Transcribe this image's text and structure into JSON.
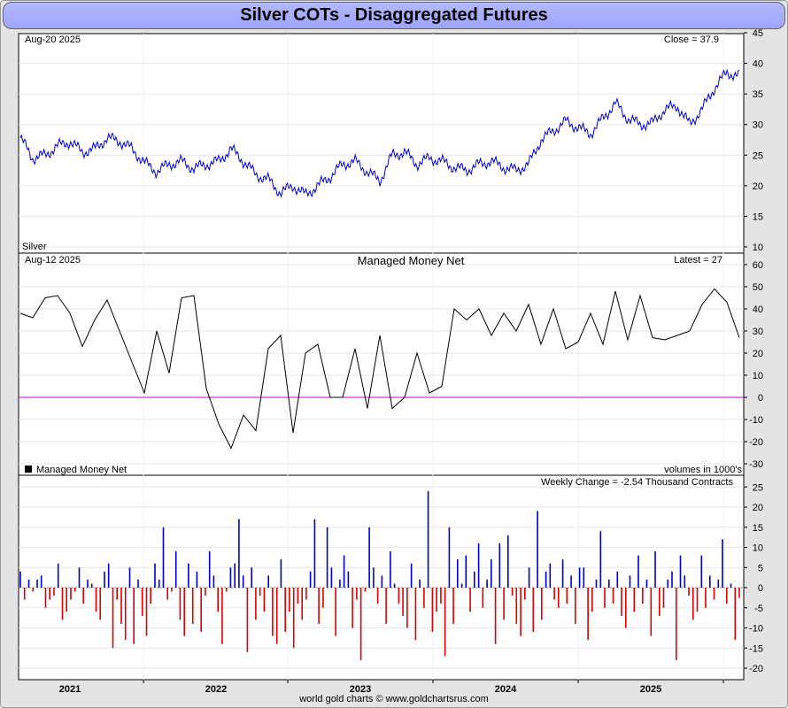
{
  "page": {
    "title": "Silver COTs - Disaggregated Futures",
    "footer": "world gold charts © www.goldchartsrus.com"
  },
  "chart_data": [
    {
      "panel": "price",
      "type": "line",
      "series": [
        {
          "name": "Silver",
          "color": "#0000cc"
        }
      ],
      "date_label": "Aug-20  2025",
      "latest_label": "Close = 37.9",
      "series_label": "Silver",
      "ylim": [
        10,
        45
      ],
      "yticks": [
        10,
        15,
        20,
        25,
        30,
        35,
        40,
        45
      ],
      "x": [
        "2020-10",
        "2020-11",
        "2020-12",
        "2021-01",
        "2021-02",
        "2021-03",
        "2021-04",
        "2021-05",
        "2021-06",
        "2021-07",
        "2021-08",
        "2021-09",
        "2021-10",
        "2021-11",
        "2021-12",
        "2022-01",
        "2022-02",
        "2022-03",
        "2022-04",
        "2022-05",
        "2022-06",
        "2022-07",
        "2022-08",
        "2022-09",
        "2022-10",
        "2022-11",
        "2022-12",
        "2023-01",
        "2023-02",
        "2023-03",
        "2023-04",
        "2023-05",
        "2023-06",
        "2023-07",
        "2023-08",
        "2023-09",
        "2023-10",
        "2023-11",
        "2023-12",
        "2024-01",
        "2024-02",
        "2024-03",
        "2024-04",
        "2024-05",
        "2024-06",
        "2024-07",
        "2024-08",
        "2024-09",
        "2024-10",
        "2024-11",
        "2024-12",
        "2025-01",
        "2025-02",
        "2025-03",
        "2025-04",
        "2025-05",
        "2025-06",
        "2025-07",
        "2025-08"
      ],
      "values": [
        27.8,
        24.5,
        25.0,
        26.5,
        27.2,
        25.5,
        26.0,
        27.8,
        27.3,
        26.0,
        23.8,
        22.3,
        23.5,
        24.0,
        22.8,
        23.5,
        24.0,
        26.0,
        24.0,
        21.8,
        21.0,
        18.8,
        20.0,
        18.5,
        20.0,
        21.5,
        23.5,
        24.0,
        22.3,
        20.8,
        25.0,
        25.5,
        23.5,
        24.5,
        24.0,
        23.0,
        22.5,
        23.5,
        24.0,
        23.0,
        22.5,
        23.5,
        27.5,
        29.0,
        30.5,
        29.5,
        28.5,
        31.0,
        33.5,
        31.0,
        30.0,
        30.2,
        32.5,
        33.0,
        30.0,
        32.5,
        36.0,
        38.5,
        37.9
      ]
    },
    {
      "panel": "managed_money_net",
      "type": "line",
      "title": "Managed Money Net",
      "series": [
        {
          "name": "Managed Money Net",
          "color": "#000000"
        }
      ],
      "date_label": "Aug-12  2025",
      "latest_label": "Latest = 27",
      "units_label": "volumes in 1000's",
      "ylim": [
        -30,
        60
      ],
      "yticks": [
        -30,
        -20,
        -10,
        0,
        10,
        20,
        30,
        40,
        50,
        60
      ],
      "zero_line_color": "#cc00cc",
      "x": [
        "2020-10",
        "2020-11",
        "2020-12",
        "2021-01",
        "2021-02",
        "2021-03",
        "2021-04",
        "2021-05",
        "2021-06",
        "2021-07",
        "2021-08",
        "2021-09",
        "2021-10",
        "2021-11",
        "2021-12",
        "2022-01",
        "2022-02",
        "2022-03",
        "2022-04",
        "2022-05",
        "2022-06",
        "2022-07",
        "2022-08",
        "2022-09",
        "2022-10",
        "2022-11",
        "2022-12",
        "2023-01",
        "2023-02",
        "2023-03",
        "2023-04",
        "2023-05",
        "2023-06",
        "2023-07",
        "2023-08",
        "2023-09",
        "2023-10",
        "2023-11",
        "2023-12",
        "2024-01",
        "2024-02",
        "2024-03",
        "2024-04",
        "2024-05",
        "2024-06",
        "2024-07",
        "2024-08",
        "2024-09",
        "2024-10",
        "2024-11",
        "2024-12",
        "2025-01",
        "2025-02",
        "2025-03",
        "2025-04",
        "2025-05",
        "2025-06",
        "2025-07",
        "2025-08"
      ],
      "values": [
        38,
        36,
        45,
        46,
        38,
        23,
        35,
        44,
        30,
        16,
        2,
        30,
        11,
        45,
        46,
        4,
        -12,
        -23,
        -8,
        -15,
        22,
        28,
        -16,
        20,
        24,
        0,
        0,
        22,
        -5,
        28,
        -5,
        0,
        20,
        2,
        5,
        40,
        35,
        40,
        28,
        38,
        30,
        42,
        24,
        40,
        22,
        25,
        38,
        24,
        48,
        26,
        46,
        27,
        26,
        28,
        30,
        42,
        49,
        43,
        27
      ]
    },
    {
      "panel": "weekly_change",
      "type": "bar",
      "series": [
        {
          "name": "Weekly Change",
          "positive_color": "#0000cc",
          "negative_color": "#dd0000"
        }
      ],
      "legend_label": "Managed Money Net",
      "latest_label": "Weekly Change = -2.54 Thousand Contracts",
      "ylim": [
        -22,
        27
      ],
      "yticks": [
        -20,
        -15,
        -10,
        -5,
        0,
        5,
        10,
        15,
        20,
        25
      ],
      "values": [
        4,
        -3,
        2,
        -1,
        2,
        3,
        -5,
        -3,
        -2,
        6,
        -8,
        -6,
        -3,
        -1,
        5,
        -4,
        2,
        1,
        -6,
        -8,
        4,
        6,
        -15,
        -3,
        -9,
        -13,
        5,
        -14,
        2,
        -7,
        -12,
        -4,
        6,
        2,
        15,
        -3,
        -1,
        9,
        -8,
        -12,
        6,
        -9,
        4,
        -11,
        -2,
        9,
        3,
        -6,
        -14,
        -1,
        5,
        6,
        17,
        3,
        -16,
        5,
        -8,
        -2,
        -6,
        3,
        -12,
        -14,
        7,
        -11,
        -6,
        -15,
        -4,
        -8,
        -3,
        4,
        17,
        -9,
        -5,
        15,
        5,
        -12,
        2,
        8,
        4,
        -10,
        -3,
        -18,
        -1,
        15,
        5,
        -4,
        3,
        -9,
        9,
        1,
        -4,
        -7,
        -10,
        6,
        -13,
        2,
        -5,
        24,
        -11,
        -6,
        -4,
        -17,
        15,
        -9,
        7,
        1,
        8,
        -6,
        4,
        11,
        -5,
        2,
        7,
        -14,
        11,
        -8,
        13,
        -2,
        -9,
        -12,
        -3,
        5,
        -11,
        19,
        -8,
        4,
        6,
        -3,
        -5,
        7,
        -4,
        3,
        -9,
        5,
        5,
        -13,
        -6,
        2,
        14,
        -5,
        2,
        -4,
        4,
        -7,
        -10,
        3,
        -6,
        8,
        -4,
        2,
        -12,
        9,
        -7,
        -5,
        2,
        4,
        -18,
        8,
        3,
        -2,
        -8,
        -6,
        8,
        -5,
        3,
        -3,
        2,
        12,
        -4,
        1,
        -13,
        -2.54
      ]
    }
  ],
  "x_axis": {
    "years": [
      "2021",
      "2022",
      "2023",
      "2024",
      "2025"
    ]
  }
}
